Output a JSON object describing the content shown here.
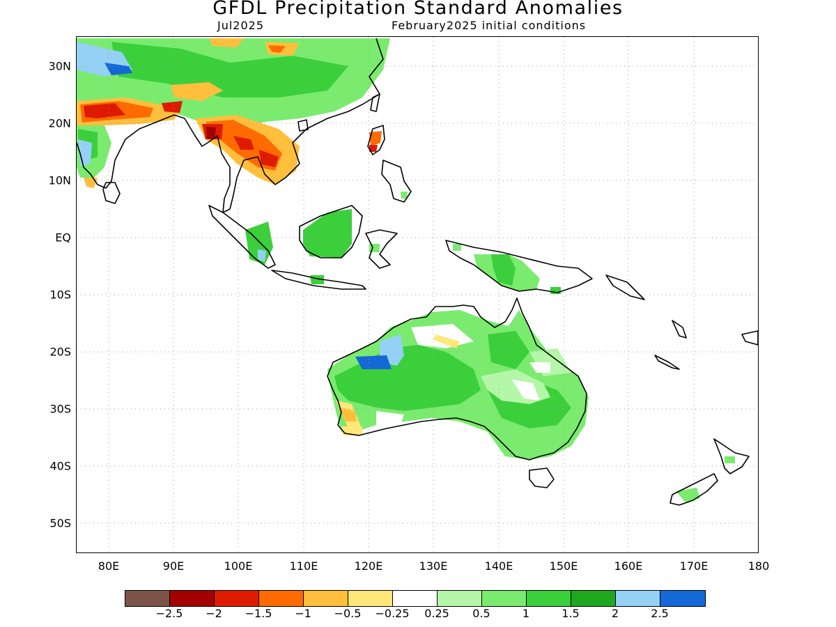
{
  "title": "GFDL Precipitation Standard Anomalies",
  "valid_month": "Jul2025",
  "init_conditions": "February2025 initial conditions",
  "map": {
    "lat_labels": [
      "30N",
      "20N",
      "10N",
      "EQ",
      "10S",
      "20S",
      "30S",
      "40S",
      "50S"
    ],
    "lon_labels": [
      "80E",
      "90E",
      "100E",
      "110E",
      "120E",
      "130E",
      "140E",
      "150E",
      "160E",
      "170E",
      "180"
    ],
    "grid": "dotted"
  },
  "legend": {
    "colors": [
      "#7b5447",
      "#a30000",
      "#de1b00",
      "#ff6b00",
      "#ffbf3d",
      "#ffe77a",
      "#ffffff",
      "#b5f7a8",
      "#7aeb6e",
      "#3ccf3c",
      "#1fa81f",
      "#94d1f5",
      "#1469d6"
    ],
    "ticks": [
      "−2.5",
      "−2",
      "−1.5",
      "−1",
      "−0.5",
      "−0.25",
      "0.25",
      "0.5",
      "1",
      "1.5",
      "2",
      "2.5"
    ]
  }
}
